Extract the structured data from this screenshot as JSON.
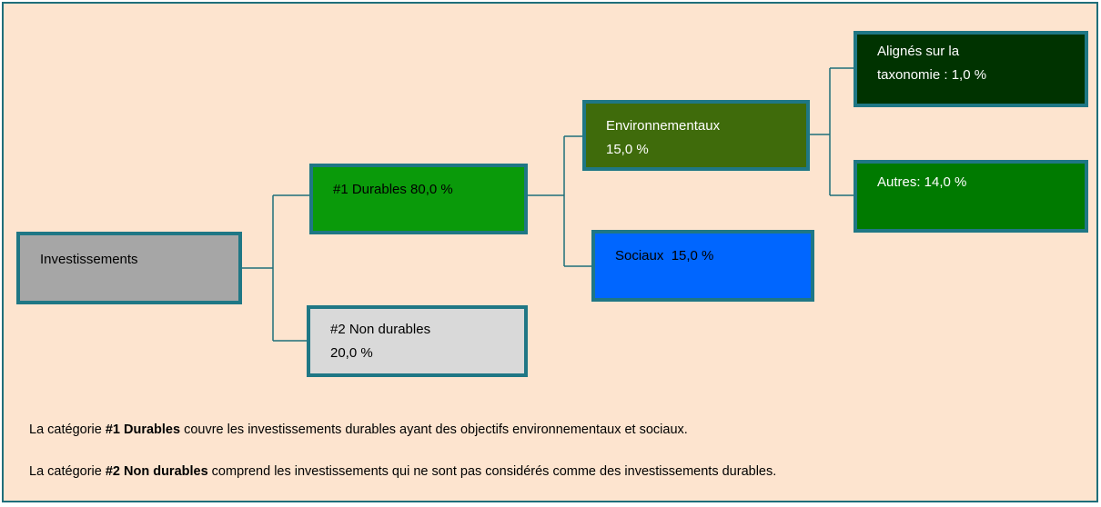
{
  "nodes": [
    {
      "lines": [
        "Investissements"
      ]
    },
    {
      "lines": [
        "#1 Durables 80,0 %"
      ]
    },
    {
      "lines": [
        "#2 Non durables",
        "20,0 %"
      ]
    },
    {
      "lines": [
        "Environnementaux",
        "15,0 %"
      ]
    },
    {
      "lines": [
        "Sociaux  15,0 %"
      ]
    },
    {
      "lines": [
        "Alignés sur la",
        "taxonomie : 1,0 %"
      ]
    },
    {
      "lines": [
        "Autres: 14,0 %"
      ]
    }
  ],
  "notes": [
    {
      "prefix": "La catégorie ",
      "bold": "#1 Durables",
      "suffix": " couvre les investissements durables ayant des objectifs environnementaux et sociaux."
    },
    {
      "prefix": "La catégorie ",
      "bold": "#2 Non durables",
      "suffix": " comprend les investissements qui ne sont pas considérés comme des investissements durables."
    }
  ]
}
